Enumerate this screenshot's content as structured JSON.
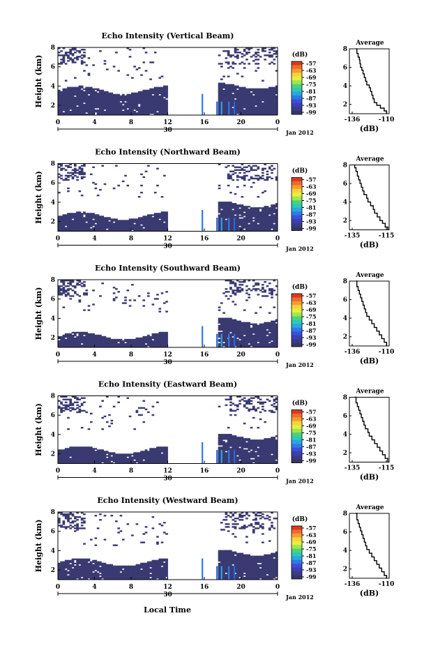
{
  "figure": {
    "x_title": "Local Time",
    "date_label": "Jan 2012",
    "day_label": "30",
    "colorbar_unit": "(dB)",
    "colorbar_ticks": [
      "-57",
      "-63",
      "-69",
      "-75",
      "-81",
      "-87",
      "-93",
      "-99"
    ],
    "colorbar_colors": [
      "#d73a1f",
      "#f06a2a",
      "#f59d2e",
      "#f7d23a",
      "#e6ef3e",
      "#9ee84a",
      "#4fd17a",
      "#2bc9b8",
      "#2aa7e0",
      "#2f7ae8",
      "#3a50d9",
      "#3b3fb0",
      "#3a3a8a",
      "#353566"
    ],
    "profile_title": "Average",
    "profile_xlabel": "(dB)",
    "bg_color": "#3a3a72"
  },
  "chart_data": [
    {
      "type": "heatmap",
      "title": "Echo Intensity (Vertical Beam)",
      "xlabel": "",
      "ylabel": "Height (km)",
      "x_ticks": [
        "0",
        "4",
        "8",
        "12",
        "16",
        "20",
        "0"
      ],
      "y_ticks": [
        "2",
        "4",
        "6",
        "8"
      ],
      "xlim": [
        0,
        24
      ],
      "ylim": [
        1,
        8
      ],
      "zlabel": "(dB)",
      "zlim": [
        -99,
        -57
      ],
      "profile": {
        "title": "Average",
        "x_ticks": [
          "-136",
          "-110"
        ],
        "xlabel": "(dB)",
        "y_ticks": [
          "2",
          "4",
          "6",
          "8"
        ],
        "xlim": [
          -140,
          -108
        ],
        "points": [
          [
            -110,
            1.0
          ],
          [
            -112,
            1.3
          ],
          [
            -115,
            1.6
          ],
          [
            -118,
            1.9
          ],
          [
            -120,
            2.2
          ],
          [
            -121,
            2.6
          ],
          [
            -122,
            3.0
          ],
          [
            -123,
            3.4
          ],
          [
            -124,
            3.8
          ],
          [
            -126,
            4.1
          ],
          [
            -127,
            4.5
          ],
          [
            -128,
            4.9
          ],
          [
            -129,
            5.3
          ],
          [
            -130,
            5.7
          ],
          [
            -131,
            6.0
          ],
          [
            -131.5,
            6.4
          ],
          [
            -132,
            6.8
          ],
          [
            -133,
            7.1
          ],
          [
            -134,
            7.5
          ],
          [
            -134.5,
            8.0
          ]
        ]
      }
    },
    {
      "type": "heatmap",
      "title": "Echo Intensity (Northward Beam)",
      "xlabel": "",
      "ylabel": "Height (km)",
      "x_ticks": [
        "0",
        "4",
        "8",
        "12",
        "16",
        "20",
        "0"
      ],
      "y_ticks": [
        "2",
        "4",
        "6",
        "8"
      ],
      "xlim": [
        0,
        24
      ],
      "ylim": [
        1,
        8
      ],
      "zlabel": "(dB)",
      "zlim": [
        -99,
        -57
      ],
      "profile": {
        "title": "Average",
        "x_ticks": [
          "-135",
          "-115"
        ],
        "xlabel": "(dB)",
        "y_ticks": [
          "2",
          "4",
          "6",
          "8"
        ],
        "xlim": [
          -140,
          -110
        ],
        "points": [
          [
            -111,
            1.0
          ],
          [
            -113,
            1.3
          ],
          [
            -115,
            1.7
          ],
          [
            -117,
            2.0
          ],
          [
            -119,
            2.4
          ],
          [
            -121,
            2.8
          ],
          [
            -122,
            3.2
          ],
          [
            -124,
            3.6
          ],
          [
            -126,
            4.0
          ],
          [
            -127,
            4.4
          ],
          [
            -129,
            4.8
          ],
          [
            -130,
            5.2
          ],
          [
            -131,
            5.6
          ],
          [
            -132,
            6.0
          ],
          [
            -133,
            6.4
          ],
          [
            -134,
            6.8
          ],
          [
            -135,
            7.3
          ],
          [
            -136,
            7.7
          ],
          [
            -136.5,
            8.0
          ]
        ]
      }
    },
    {
      "type": "heatmap",
      "title": "Echo Intensity (Southward Beam)",
      "xlabel": "",
      "ylabel": "Height (km)",
      "x_ticks": [
        "0",
        "4",
        "8",
        "12",
        "16",
        "20",
        "0"
      ],
      "y_ticks": [
        "2",
        "4",
        "6",
        "8"
      ],
      "xlim": [
        0,
        24
      ],
      "ylim": [
        1,
        8
      ],
      "zlabel": "(dB)",
      "zlim": [
        -99,
        -57
      ],
      "profile": {
        "title": "Average",
        "x_ticks": [
          "-136",
          "-110"
        ],
        "xlabel": "(dB)",
        "y_ticks": [
          "2",
          "4",
          "6",
          "8"
        ],
        "xlim": [
          -140,
          -108
        ],
        "points": [
          [
            -110,
            1.0
          ],
          [
            -112,
            1.4
          ],
          [
            -114,
            1.8
          ],
          [
            -116,
            2.2
          ],
          [
            -118,
            2.6
          ],
          [
            -120,
            3.0
          ],
          [
            -122,
            3.4
          ],
          [
            -124,
            3.8
          ],
          [
            -126,
            4.2
          ],
          [
            -127,
            4.6
          ],
          [
            -128,
            5.0
          ],
          [
            -129,
            5.4
          ],
          [
            -130,
            5.8
          ],
          [
            -131,
            6.2
          ],
          [
            -132,
            6.6
          ],
          [
            -133,
            7.0
          ],
          [
            -134,
            7.4
          ],
          [
            -134.5,
            8.0
          ]
        ]
      }
    },
    {
      "type": "heatmap",
      "title": "Echo Intensity (Eastward Beam)",
      "xlabel": "",
      "ylabel": "Height (km)",
      "x_ticks": [
        "0",
        "4",
        "8",
        "12",
        "16",
        "20",
        "0"
      ],
      "y_ticks": [
        "2",
        "4",
        "6",
        "8"
      ],
      "xlim": [
        0,
        24
      ],
      "ylim": [
        1,
        8
      ],
      "zlabel": "(dB)",
      "zlim": [
        -99,
        -57
      ],
      "profile": {
        "title": "Average",
        "x_ticks": [
          "-135",
          "-115"
        ],
        "xlabel": "(dB)",
        "y_ticks": [
          "2",
          "4",
          "6",
          "8"
        ],
        "xlim": [
          -140,
          -110
        ],
        "points": [
          [
            -111,
            1.0
          ],
          [
            -113,
            1.4
          ],
          [
            -115,
            1.8
          ],
          [
            -117,
            2.2
          ],
          [
            -119,
            2.6
          ],
          [
            -121,
            3.0
          ],
          [
            -123,
            3.4
          ],
          [
            -125,
            3.8
          ],
          [
            -126,
            4.2
          ],
          [
            -128,
            4.6
          ],
          [
            -129,
            5.0
          ],
          [
            -130,
            5.4
          ],
          [
            -131,
            5.8
          ],
          [
            -132,
            6.2
          ],
          [
            -133,
            6.6
          ],
          [
            -134,
            7.0
          ],
          [
            -135,
            7.4
          ],
          [
            -136,
            8.0
          ]
        ]
      }
    },
    {
      "type": "heatmap",
      "title": "Echo Intensity (Westward Beam)",
      "xlabel": "Local Time",
      "ylabel": "Height (km)",
      "x_ticks": [
        "0",
        "4",
        "8",
        "12",
        "16",
        "20",
        "0"
      ],
      "y_ticks": [
        "2",
        "4",
        "6",
        "8"
      ],
      "xlim": [
        0,
        24
      ],
      "ylim": [
        1,
        8
      ],
      "zlabel": "(dB)",
      "zlim": [
        -99,
        -57
      ],
      "profile": {
        "title": "Average",
        "x_ticks": [
          "-136",
          "-110"
        ],
        "xlabel": "(dB)",
        "y_ticks": [
          "2",
          "4",
          "6",
          "8"
        ],
        "xlim": [
          -140,
          -108
        ],
        "points": [
          [
            -110,
            1.0
          ],
          [
            -112,
            1.3
          ],
          [
            -114,
            1.7
          ],
          [
            -116,
            2.1
          ],
          [
            -118,
            2.5
          ],
          [
            -120,
            2.9
          ],
          [
            -122,
            3.3
          ],
          [
            -124,
            3.7
          ],
          [
            -126,
            4.1
          ],
          [
            -127,
            4.5
          ],
          [
            -128,
            4.9
          ],
          [
            -129,
            5.3
          ],
          [
            -130,
            5.7
          ],
          [
            -131,
            6.1
          ],
          [
            -132,
            6.5
          ],
          [
            -133,
            6.9
          ],
          [
            -134,
            7.3
          ],
          [
            -135,
            8.0
          ]
        ]
      }
    }
  ]
}
